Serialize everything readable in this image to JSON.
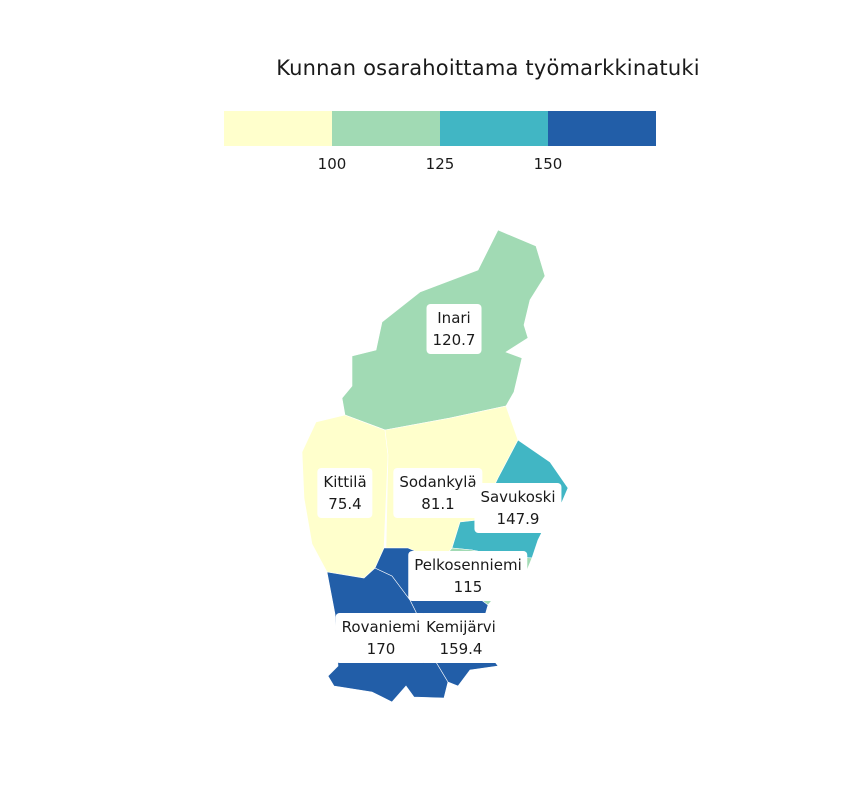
{
  "title": "Kunnan osarahoittama työmarkkinatuki",
  "legend": {
    "colors": [
      "#ffffcc",
      "#a1dab4",
      "#41b6c4",
      "#225ea8"
    ],
    "ticks": [
      "100",
      "125",
      "150"
    ]
  },
  "regions": [
    {
      "name": "Inari",
      "value": "120.7",
      "color": "#a1dab4"
    },
    {
      "name": "Kittilä",
      "value": "75.4",
      "color": "#ffffcc"
    },
    {
      "name": "Sodankylä",
      "value": "81.1",
      "color": "#ffffcc"
    },
    {
      "name": "Savukoski",
      "value": "147.9",
      "color": "#41b6c4"
    },
    {
      "name": "Pelkosenniemi",
      "value": "115",
      "color": "#a1dab4"
    },
    {
      "name": "Rovaniemi",
      "value": "170",
      "color": "#225ea8"
    },
    {
      "name": "Kemijärvi",
      "value": "159.4",
      "color": "#225ea8"
    }
  ]
}
